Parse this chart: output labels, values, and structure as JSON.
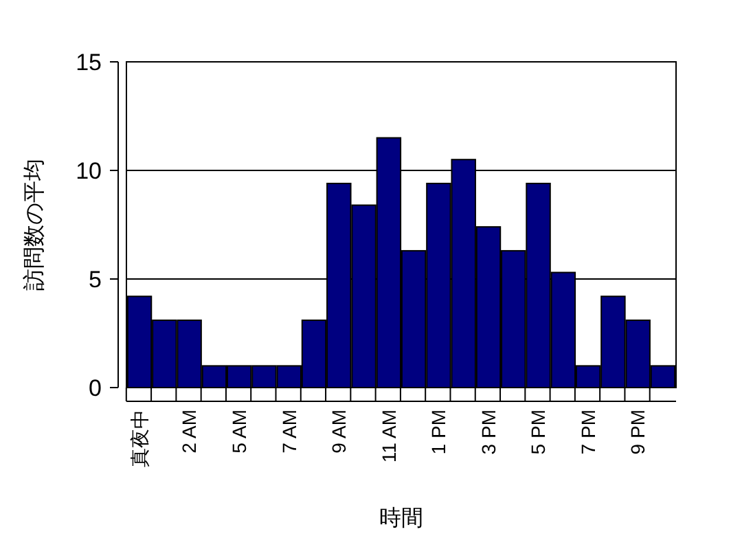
{
  "chart_data": {
    "type": "bar",
    "xlabel": "時間",
    "ylabel": "訪問数の平均",
    "categories": [
      "真夜中",
      null,
      "2 AM",
      null,
      "5 AM",
      null,
      "7 AM",
      null,
      "9 AM",
      null,
      "11 AM",
      null,
      "1 PM",
      null,
      "3 PM",
      null,
      "5 PM",
      null,
      "7 PM",
      null,
      "9 PM",
      null
    ],
    "values": [
      4.2,
      3.1,
      3.1,
      1.0,
      1.0,
      1.0,
      1.0,
      3.1,
      9.4,
      8.4,
      11.5,
      6.3,
      9.4,
      10.5,
      7.4,
      6.3,
      9.4,
      5.3,
      1.0,
      4.2,
      3.1,
      1.0
    ],
    "color": "#000080",
    "ylim": [
      0,
      15
    ],
    "yticks": [
      0,
      5,
      10,
      15
    ],
    "grid": "y"
  }
}
